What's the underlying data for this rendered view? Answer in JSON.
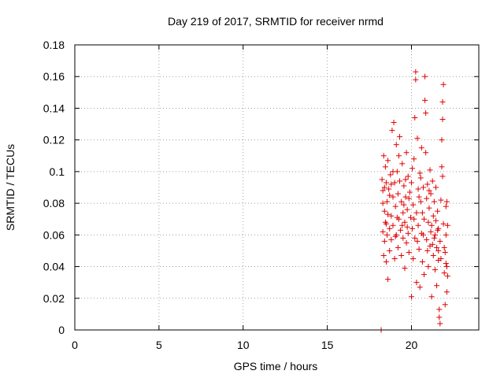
{
  "chart_data": {
    "type": "scatter",
    "title": "Day 219 of 2017, SRMTID for receiver nrmd",
    "xlabel": "GPS time / hours",
    "ylabel": "SRMTID / TECUs",
    "xlim": [
      0,
      24
    ],
    "ylim": [
      0,
      0.18
    ],
    "xticks": [
      0,
      5,
      10,
      15,
      20
    ],
    "xtick_labels": [
      "0",
      "5",
      "10",
      "15",
      "20"
    ],
    "yticks": [
      0,
      0.02,
      0.04,
      0.06,
      0.08,
      0.1,
      0.12,
      0.14,
      0.16,
      0.18
    ],
    "ytick_labels": [
      "0",
      "0.02",
      "0.04",
      "0.06",
      "0.08",
      "0.1",
      "0.12",
      "0.14",
      "0.16",
      "0.18"
    ],
    "grid": true,
    "marker": "plus",
    "series": [
      {
        "name": "SRMTID",
        "color": "#e00000",
        "points": [
          [
            18.2,
            0.0
          ],
          [
            18.25,
            0.095
          ],
          [
            18.3,
            0.088
          ],
          [
            18.3,
            0.062
          ],
          [
            18.35,
            0.047
          ],
          [
            18.35,
            0.11
          ],
          [
            18.4,
            0.075
          ],
          [
            18.4,
            0.056
          ],
          [
            18.45,
            0.103
          ],
          [
            18.45,
            0.068
          ],
          [
            18.5,
            0.093
          ],
          [
            18.5,
            0.043
          ],
          [
            18.55,
            0.081
          ],
          [
            18.55,
            0.06
          ],
          [
            18.6,
            0.032
          ],
          [
            18.6,
            0.107
          ],
          [
            18.65,
            0.089
          ],
          [
            18.7,
            0.064
          ],
          [
            18.7,
            0.05
          ],
          [
            18.75,
            0.098
          ],
          [
            18.8,
            0.072
          ],
          [
            18.8,
            0.057
          ],
          [
            18.85,
            0.126
          ],
          [
            18.9,
            0.084
          ],
          [
            18.9,
            0.066
          ],
          [
            18.95,
            0.131
          ],
          [
            19.0,
            0.093
          ],
          [
            19.0,
            0.045
          ],
          [
            19.05,
            0.078
          ],
          [
            19.1,
            0.117
          ],
          [
            19.1,
            0.06
          ],
          [
            19.15,
            0.1
          ],
          [
            19.2,
            0.086
          ],
          [
            19.2,
            0.052
          ],
          [
            19.25,
            0.07
          ],
          [
            19.3,
            0.122
          ],
          [
            19.3,
            0.094
          ],
          [
            19.35,
            0.063
          ],
          [
            19.4,
            0.081
          ],
          [
            19.4,
            0.047
          ],
          [
            19.45,
            0.105
          ],
          [
            19.5,
            0.074
          ],
          [
            19.5,
            0.058
          ],
          [
            19.55,
            0.091
          ],
          [
            19.6,
            0.068
          ],
          [
            19.6,
            0.039
          ],
          [
            19.65,
            0.084
          ],
          [
            19.7,
            0.112
          ],
          [
            19.7,
            0.055
          ],
          [
            19.75,
            0.076
          ],
          [
            19.8,
            0.097
          ],
          [
            19.8,
            0.061
          ],
          [
            19.85,
            0.049
          ],
          [
            19.9,
            0.087
          ],
          [
            19.95,
            0.071
          ],
          [
            20.0,
            0.021
          ],
          [
            20.0,
            0.093
          ],
          [
            20.05,
            0.064
          ],
          [
            20.1,
            0.079
          ],
          [
            20.1,
            0.045
          ],
          [
            20.15,
            0.108
          ],
          [
            20.2,
            0.134
          ],
          [
            20.2,
            0.058
          ],
          [
            20.25,
            0.163
          ],
          [
            20.25,
            0.158
          ],
          [
            20.3,
            0.074
          ],
          [
            20.3,
            0.03
          ],
          [
            20.35,
            0.121
          ],
          [
            20.4,
            0.089
          ],
          [
            20.4,
            0.066
          ],
          [
            20.45,
            0.051
          ],
          [
            20.5,
            0.099
          ],
          [
            20.5,
            0.027
          ],
          [
            20.55,
            0.081
          ],
          [
            20.6,
            0.115
          ],
          [
            20.6,
            0.061
          ],
          [
            20.65,
            0.043
          ],
          [
            20.7,
            0.09
          ],
          [
            20.75,
            0.07
          ],
          [
            20.75,
            0.035
          ],
          [
            20.8,
            0.16
          ],
          [
            20.8,
            0.145
          ],
          [
            20.85,
            0.137
          ],
          [
            20.85,
            0.112
          ],
          [
            20.9,
            0.083
          ],
          [
            20.9,
            0.057
          ],
          [
            20.95,
            0.092
          ],
          [
            21.0,
            0.068
          ],
          [
            21.0,
            0.04
          ],
          [
            21.05,
            0.077
          ],
          [
            21.1,
            0.101
          ],
          [
            21.1,
            0.053
          ],
          [
            21.15,
            0.086
          ],
          [
            21.2,
            0.021
          ],
          [
            21.2,
            0.066
          ],
          [
            21.25,
            0.094
          ],
          [
            21.3,
            0.047
          ],
          [
            21.3,
            0.072
          ],
          [
            21.35,
            0.081
          ],
          [
            21.4,
            0.038
          ],
          [
            21.4,
            0.06
          ],
          [
            21.45,
            0.09
          ],
          [
            21.5,
            0.052
          ],
          [
            21.5,
            0.028
          ],
          [
            21.55,
            0.075
          ],
          [
            21.6,
            0.044
          ],
          [
            21.6,
            0.064
          ],
          [
            21.65,
            0.013
          ],
          [
            21.65,
            0.008
          ],
          [
            21.7,
            0.004
          ],
          [
            21.7,
            0.056
          ],
          [
            21.75,
            0.082
          ],
          [
            21.8,
            0.12
          ],
          [
            21.8,
            0.103
          ],
          [
            21.85,
            0.133
          ],
          [
            21.85,
            0.144
          ],
          [
            21.9,
            0.155
          ],
          [
            21.9,
            0.067
          ],
          [
            21.95,
            0.036
          ],
          [
            22.0,
            0.016
          ],
          [
            22.0,
            0.049
          ],
          [
            22.05,
            0.078
          ],
          [
            22.05,
            0.06
          ],
          [
            22.1,
            0.04
          ],
          [
            22.1,
            0.024
          ],
          [
            22.15,
            0.066
          ],
          [
            22.15,
            0.034
          ],
          [
            18.3,
            0.08
          ],
          [
            18.4,
            0.09
          ],
          [
            18.6,
            0.073
          ],
          [
            18.7,
            0.085
          ],
          [
            18.9,
            0.1
          ],
          [
            19.05,
            0.059
          ],
          [
            19.25,
            0.11
          ],
          [
            19.45,
            0.066
          ],
          [
            19.65,
            0.095
          ],
          [
            19.85,
            0.083
          ],
          [
            20.05,
            0.102
          ],
          [
            20.15,
            0.07
          ],
          [
            20.35,
            0.056
          ],
          [
            20.45,
            0.084
          ],
          [
            20.65,
            0.074
          ],
          [
            20.95,
            0.05
          ],
          [
            21.15,
            0.062
          ],
          [
            21.35,
            0.058
          ],
          [
            21.45,
            0.069
          ],
          [
            21.55,
            0.063
          ],
          [
            21.75,
            0.045
          ],
          [
            21.95,
            0.052
          ],
          [
            22.05,
            0.042
          ],
          [
            18.5,
            0.067
          ],
          [
            18.8,
            0.092
          ],
          [
            19.15,
            0.071
          ],
          [
            19.55,
            0.079
          ],
          [
            19.75,
            0.065
          ],
          [
            20.55,
            0.096
          ],
          [
            20.7,
            0.06
          ],
          [
            21.05,
            0.088
          ],
          [
            21.25,
            0.054
          ],
          [
            21.6,
            0.05
          ],
          [
            21.85,
            0.097
          ],
          [
            22.1,
            0.081
          ]
        ]
      }
    ]
  }
}
